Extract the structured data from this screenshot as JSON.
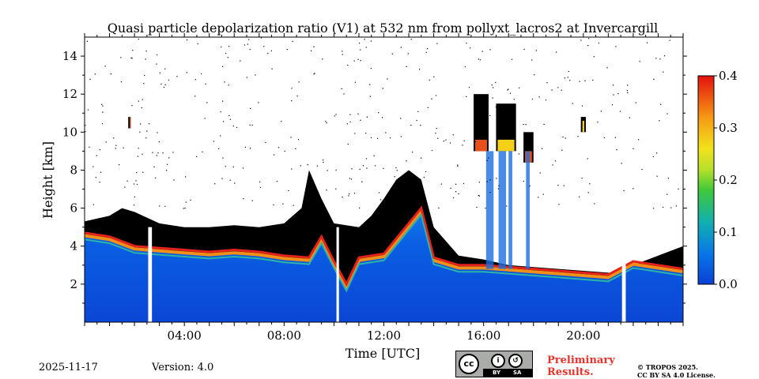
{
  "chart_data": {
    "type": "heatmap",
    "title": "Quasi particle depolarization ratio (V1) at 532 nm from pollyxt_lacros2 at Invercargill",
    "xlabel": "Time [UTC]",
    "ylabel": "Height [km]",
    "xlim_hours": [
      0,
      24
    ],
    "ylim_km": [
      0,
      15
    ],
    "x_ticks": [
      {
        "hour": 4,
        "label": "04:00"
      },
      {
        "hour": 8,
        "label": "08:00"
      },
      {
        "hour": 12,
        "label": "12:00"
      },
      {
        "hour": 16,
        "label": "16:00"
      },
      {
        "hour": 20,
        "label": "20:00"
      }
    ],
    "y_ticks": [
      {
        "km": 2,
        "label": "2"
      },
      {
        "km": 4,
        "label": "4"
      },
      {
        "km": 6,
        "label": "6"
      },
      {
        "km": 8,
        "label": "8"
      },
      {
        "km": 10,
        "label": "10"
      },
      {
        "km": 12,
        "label": "12"
      },
      {
        "km": 14,
        "label": "14"
      }
    ],
    "colorbar": {
      "range": [
        0.0,
        0.4
      ],
      "ticks": [
        {
          "value": 0.0,
          "label": "0.0"
        },
        {
          "value": 0.1,
          "label": "0.1"
        },
        {
          "value": 0.2,
          "label": "0.2"
        },
        {
          "value": 0.3,
          "label": "0.3"
        },
        {
          "value": 0.4,
          "label": "0.4"
        }
      ]
    },
    "no_data_gaps_hours": [
      [
        2.55,
        2.7
      ],
      [
        10.1,
        10.2
      ],
      [
        21.55,
        21.7
      ]
    ],
    "layer_top_km": [
      [
        0.0,
        5.3
      ],
      [
        1.0,
        5.6
      ],
      [
        1.5,
        6.0
      ],
      [
        2.0,
        5.8
      ],
      [
        2.5,
        5.5
      ],
      [
        3.0,
        5.2
      ],
      [
        4.0,
        5.0
      ],
      [
        5.0,
        5.0
      ],
      [
        6.0,
        5.1
      ],
      [
        7.0,
        5.0
      ],
      [
        8.0,
        5.2
      ],
      [
        8.7,
        6.0
      ],
      [
        9.0,
        8.0
      ],
      [
        9.5,
        6.5
      ],
      [
        10.0,
        5.2
      ],
      [
        11.0,
        5.0
      ],
      [
        11.5,
        5.6
      ],
      [
        12.0,
        6.5
      ],
      [
        12.5,
        7.5
      ],
      [
        13.0,
        8.0
      ],
      [
        13.5,
        7.5
      ],
      [
        14.0,
        5.0
      ],
      [
        15.0,
        3.5
      ],
      [
        16.0,
        3.3
      ],
      [
        17.0,
        3.0
      ],
      [
        18.0,
        2.9
      ],
      [
        19.0,
        2.8
      ],
      [
        20.0,
        2.7
      ],
      [
        21.0,
        2.6
      ],
      [
        21.5,
        2.5
      ],
      [
        22.0,
        3.0
      ],
      [
        23.0,
        3.5
      ],
      [
        24.0,
        4.0
      ]
    ],
    "aerosol_top_km": [
      [
        0.0,
        4.5
      ],
      [
        1.0,
        4.3
      ],
      [
        2.0,
        3.8
      ],
      [
        3.0,
        3.7
      ],
      [
        4.0,
        3.6
      ],
      [
        5.0,
        3.5
      ],
      [
        6.0,
        3.6
      ],
      [
        7.0,
        3.5
      ],
      [
        8.0,
        3.3
      ],
      [
        9.0,
        3.2
      ],
      [
        9.5,
        4.3
      ],
      [
        10.0,
        3.0
      ],
      [
        10.5,
        1.8
      ],
      [
        11.0,
        3.2
      ],
      [
        12.0,
        3.4
      ],
      [
        12.5,
        4.2
      ],
      [
        13.0,
        5.0
      ],
      [
        13.5,
        5.8
      ],
      [
        14.0,
        3.2
      ],
      [
        15.0,
        2.8
      ],
      [
        16.0,
        2.8
      ],
      [
        17.0,
        2.7
      ],
      [
        18.0,
        2.6
      ],
      [
        19.0,
        2.5
      ],
      [
        20.0,
        2.4
      ],
      [
        21.0,
        2.3
      ],
      [
        22.0,
        3.0
      ],
      [
        24.0,
        2.6
      ]
    ],
    "cirrus_clusters": [
      {
        "hour_start": 15.6,
        "hour_end": 16.2,
        "base_km": 9.0,
        "top_km": 12.0
      },
      {
        "hour_start": 16.5,
        "hour_end": 17.3,
        "base_km": 9.0,
        "top_km": 11.5
      },
      {
        "hour_start": 17.6,
        "hour_end": 18.0,
        "base_km": 8.4,
        "top_km": 10.0
      },
      {
        "hour_start": 19.9,
        "hour_end": 20.1,
        "base_km": 10.0,
        "top_km": 10.8
      },
      {
        "hour_start": 1.75,
        "hour_end": 1.85,
        "base_km": 10.2,
        "top_km": 10.8
      }
    ]
  },
  "footer": {
    "date": "2025-11-17",
    "version": "Version: 4.0",
    "license_badge": {
      "by": "BY",
      "sa": "SA"
    },
    "preliminary_line1": "Preliminary",
    "preliminary_line2": "Results.",
    "copyright_line1": "© TROPOS 2025.",
    "copyright_line2": "CC BY SA 4.0 License."
  }
}
